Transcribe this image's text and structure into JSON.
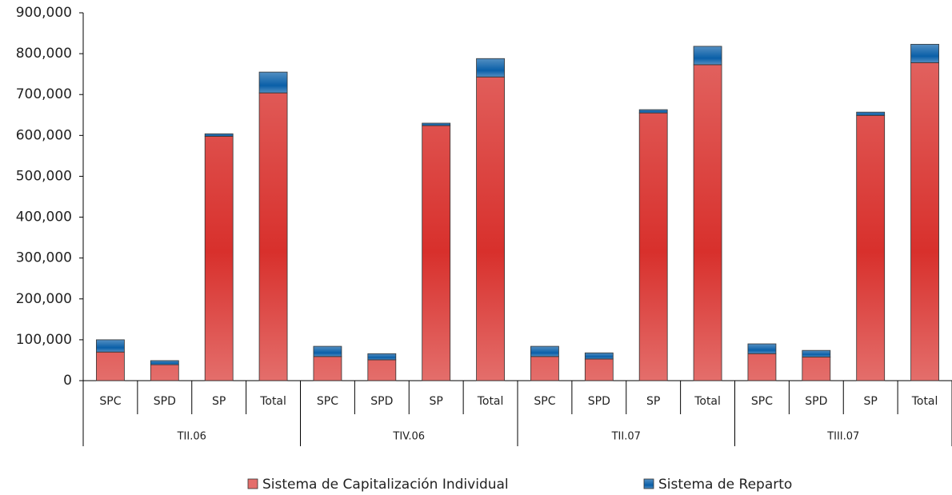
{
  "chart_data": {
    "type": "stacked-bar",
    "categories": [
      "SPC",
      "SPD",
      "SP",
      "Total",
      "SPC",
      "SPD",
      "SP",
      "Total",
      "SPC",
      "SPD",
      "SP",
      "Total",
      "SPC",
      "SPD",
      "SP",
      "Total"
    ],
    "groups": [
      "TII.06",
      "TIV.06",
      "TII.07",
      "TIII.07"
    ],
    "series": [
      {
        "name": "Sistema de Capitalización Individual",
        "color": "#d8302c",
        "values": [
          70000,
          39000,
          598000,
          704000,
          59000,
          51000,
          624000,
          743000,
          59000,
          53000,
          655000,
          773000,
          66000,
          58000,
          649000,
          778000
        ]
      },
      {
        "name": "Sistema de Reparto",
        "color": "#0a5fa8",
        "values": [
          30000,
          10000,
          6000,
          51000,
          25000,
          15000,
          6000,
          45000,
          25000,
          15000,
          8000,
          45000,
          24000,
          16000,
          8000,
          45000
        ]
      }
    ],
    "ylim": [
      0,
      900000
    ],
    "yticks": [
      0,
      {
        "value": 100000,
        "label": "100,000"
      },
      {
        "value": 200000,
        "label": "200,000"
      },
      {
        "value": 300000,
        "label": "300,000"
      },
      {
        "value": 400000,
        "label": "400,000"
      },
      {
        "value": 500000,
        "label": "500,000"
      },
      {
        "value": 600000,
        "label": "600,000"
      },
      {
        "value": 700000,
        "label": "700,000"
      },
      {
        "value": 800000,
        "label": "800,000"
      },
      {
        "value": 900000,
        "label": "900,000"
      }
    ],
    "legend": "bottom"
  }
}
